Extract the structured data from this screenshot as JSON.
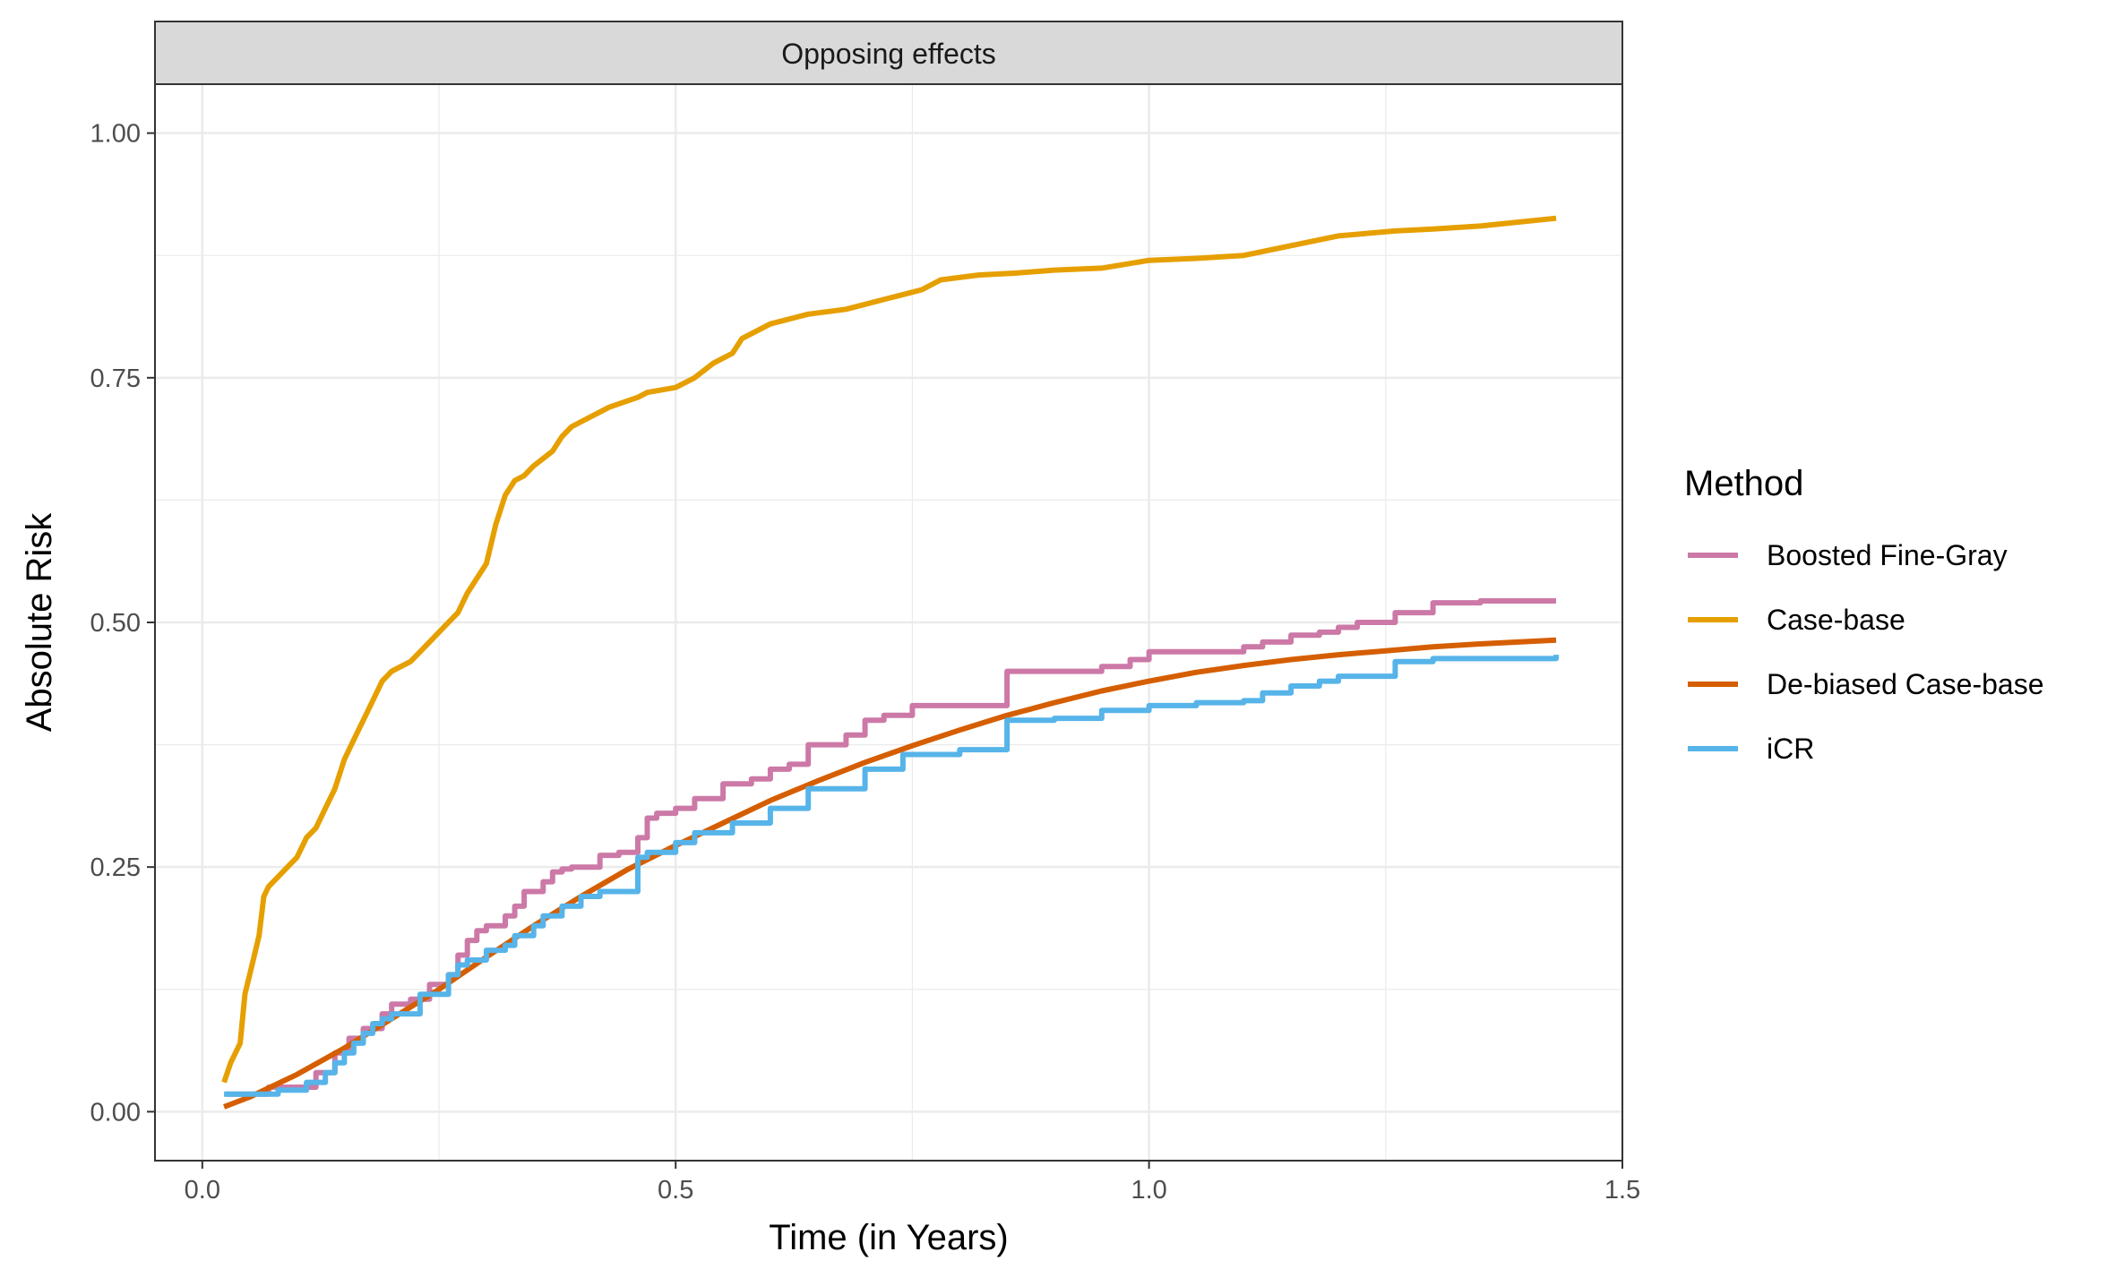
{
  "chart_data": {
    "type": "line",
    "panel_title": "Opposing effects",
    "xlabel": "Time (in Years)",
    "ylabel": "Absolute Risk",
    "xlim": [
      -0.05,
      1.5
    ],
    "ylim": [
      -0.05,
      1.05
    ],
    "x_ticks": [
      0.0,
      0.5,
      1.0,
      1.5
    ],
    "x_tick_labels": [
      "0.0",
      "0.5",
      "1.0",
      "1.5"
    ],
    "y_ticks": [
      0.0,
      0.25,
      0.5,
      0.75,
      1.0
    ],
    "y_tick_labels": [
      "0.00",
      "0.25",
      "0.50",
      "0.75",
      "1.00"
    ],
    "grid": true,
    "legend": {
      "title": "Method",
      "position": "right"
    },
    "series": [
      {
        "name": "Boosted Fine-Gray",
        "color": "#CC79A7",
        "step": true,
        "x": [
          0.025,
          0.07,
          0.12,
          0.14,
          0.155,
          0.17,
          0.19,
          0.2,
          0.22,
          0.24,
          0.26,
          0.27,
          0.28,
          0.29,
          0.3,
          0.32,
          0.33,
          0.34,
          0.36,
          0.37,
          0.38,
          0.39,
          0.42,
          0.44,
          0.46,
          0.47,
          0.48,
          0.5,
          0.52,
          0.55,
          0.58,
          0.6,
          0.62,
          0.64,
          0.68,
          0.7,
          0.72,
          0.75,
          0.8,
          0.85,
          0.9,
          0.95,
          0.98,
          1.0,
          1.1,
          1.12,
          1.15,
          1.18,
          1.2,
          1.22,
          1.26,
          1.3,
          1.35,
          1.43
        ],
        "y": [
          0.018,
          0.025,
          0.04,
          0.06,
          0.075,
          0.085,
          0.1,
          0.11,
          0.115,
          0.13,
          0.14,
          0.16,
          0.175,
          0.185,
          0.19,
          0.2,
          0.21,
          0.225,
          0.235,
          0.245,
          0.248,
          0.25,
          0.262,
          0.265,
          0.28,
          0.3,
          0.305,
          0.31,
          0.32,
          0.335,
          0.34,
          0.35,
          0.355,
          0.375,
          0.385,
          0.4,
          0.405,
          0.415,
          0.415,
          0.45,
          0.45,
          0.455,
          0.462,
          0.47,
          0.475,
          0.48,
          0.487,
          0.49,
          0.495,
          0.5,
          0.51,
          0.52,
          0.522,
          0.522
        ]
      },
      {
        "name": "Case-base",
        "color": "#E69F00",
        "step": false,
        "x": [
          0.023,
          0.03,
          0.04,
          0.045,
          0.05,
          0.055,
          0.06,
          0.065,
          0.07,
          0.08,
          0.09,
          0.1,
          0.11,
          0.12,
          0.13,
          0.14,
          0.15,
          0.16,
          0.17,
          0.18,
          0.19,
          0.2,
          0.22,
          0.24,
          0.25,
          0.27,
          0.28,
          0.3,
          0.31,
          0.32,
          0.33,
          0.34,
          0.35,
          0.37,
          0.38,
          0.39,
          0.4,
          0.42,
          0.43,
          0.46,
          0.47,
          0.5,
          0.52,
          0.54,
          0.56,
          0.57,
          0.6,
          0.64,
          0.68,
          0.72,
          0.76,
          0.78,
          0.82,
          0.86,
          0.9,
          0.95,
          1.0,
          1.05,
          1.1,
          1.15,
          1.2,
          1.26,
          1.3,
          1.35,
          1.43
        ],
        "y": [
          0.03,
          0.05,
          0.07,
          0.12,
          0.14,
          0.16,
          0.18,
          0.22,
          0.23,
          0.24,
          0.25,
          0.26,
          0.28,
          0.29,
          0.31,
          0.33,
          0.36,
          0.38,
          0.4,
          0.42,
          0.44,
          0.45,
          0.46,
          0.48,
          0.49,
          0.51,
          0.53,
          0.56,
          0.6,
          0.63,
          0.645,
          0.65,
          0.66,
          0.675,
          0.69,
          0.7,
          0.705,
          0.715,
          0.72,
          0.73,
          0.735,
          0.74,
          0.75,
          0.765,
          0.775,
          0.79,
          0.805,
          0.815,
          0.82,
          0.83,
          0.84,
          0.85,
          0.855,
          0.857,
          0.86,
          0.862,
          0.87,
          0.872,
          0.875,
          0.885,
          0.895,
          0.9,
          0.902,
          0.905,
          0.913
        ]
      },
      {
        "name": "De-biased Case-base",
        "color": "#D55E00",
        "step": false,
        "x": [
          0.023,
          0.05,
          0.1,
          0.15,
          0.2,
          0.25,
          0.3,
          0.35,
          0.4,
          0.45,
          0.5,
          0.55,
          0.6,
          0.65,
          0.7,
          0.75,
          0.8,
          0.85,
          0.9,
          0.95,
          1.0,
          1.05,
          1.1,
          1.15,
          1.2,
          1.25,
          1.3,
          1.35,
          1.43
        ],
        "y": [
          0.005,
          0.015,
          0.038,
          0.065,
          0.095,
          0.125,
          0.158,
          0.19,
          0.22,
          0.248,
          0.272,
          0.295,
          0.318,
          0.338,
          0.357,
          0.374,
          0.39,
          0.405,
          0.418,
          0.43,
          0.44,
          0.449,
          0.456,
          0.462,
          0.467,
          0.471,
          0.475,
          0.478,
          0.482
        ]
      },
      {
        "name": "iCR",
        "color": "#56B4E9",
        "step": true,
        "x": [
          0.023,
          0.08,
          0.11,
          0.13,
          0.14,
          0.15,
          0.16,
          0.17,
          0.18,
          0.19,
          0.2,
          0.23,
          0.26,
          0.27,
          0.28,
          0.3,
          0.32,
          0.33,
          0.35,
          0.36,
          0.38,
          0.4,
          0.42,
          0.46,
          0.47,
          0.5,
          0.52,
          0.56,
          0.6,
          0.64,
          0.7,
          0.74,
          0.8,
          0.85,
          0.9,
          0.95,
          1.0,
          1.05,
          1.1,
          1.12,
          1.15,
          1.18,
          1.2,
          1.26,
          1.3,
          1.43
        ],
        "y": [
          0.018,
          0.022,
          0.03,
          0.04,
          0.05,
          0.06,
          0.07,
          0.08,
          0.09,
          0.095,
          0.1,
          0.12,
          0.14,
          0.15,
          0.155,
          0.165,
          0.17,
          0.18,
          0.19,
          0.2,
          0.21,
          0.22,
          0.225,
          0.26,
          0.265,
          0.275,
          0.285,
          0.295,
          0.31,
          0.33,
          0.35,
          0.365,
          0.37,
          0.4,
          0.402,
          0.41,
          0.415,
          0.418,
          0.42,
          0.428,
          0.435,
          0.44,
          0.445,
          0.46,
          0.463,
          0.467
        ]
      }
    ]
  }
}
